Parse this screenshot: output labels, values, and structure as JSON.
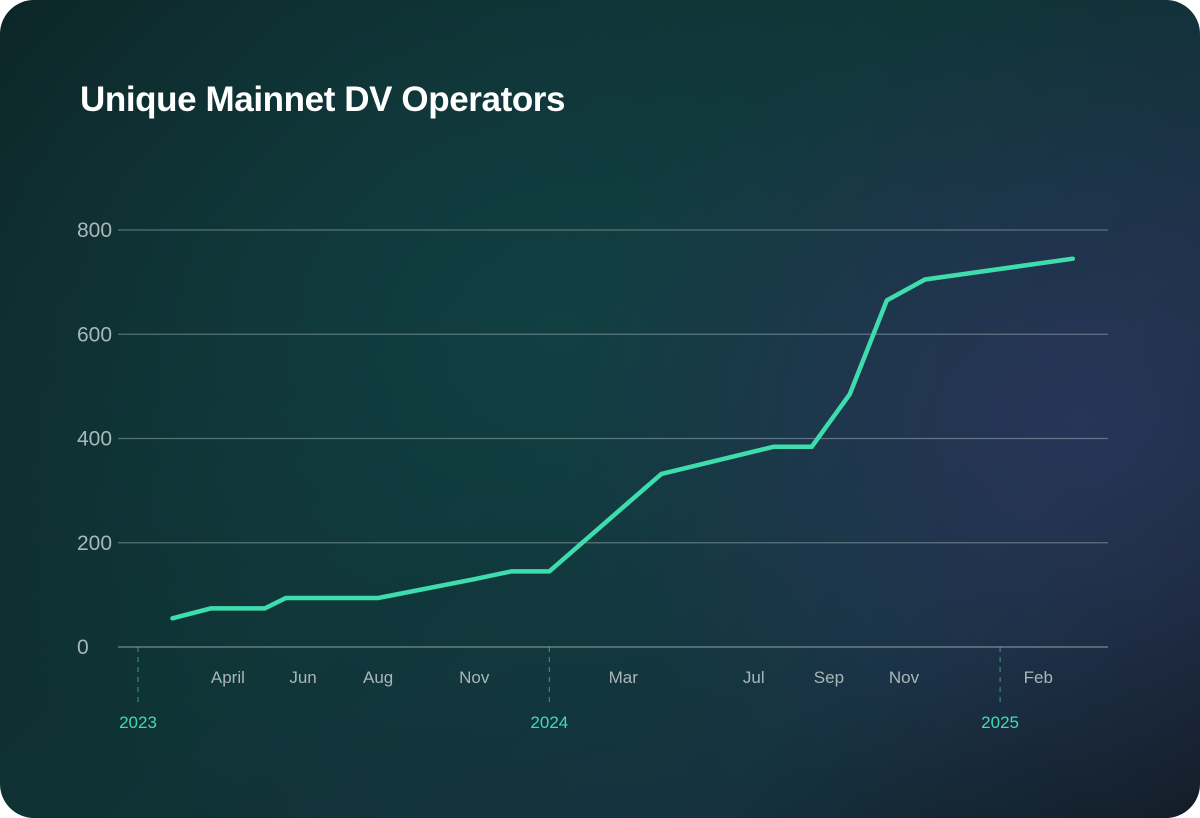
{
  "header": {
    "title": "Unique Mainnet DV Operators"
  },
  "chart_data": {
    "type": "line",
    "title": "Unique Mainnet DV Operators",
    "xlabel": "",
    "ylabel": "",
    "ylim": [
      0,
      800
    ],
    "y_ticks": [
      "800",
      "600",
      "400",
      "200",
      "0"
    ],
    "y_tick_values": [
      800,
      600,
      400,
      200,
      0
    ],
    "x_range": [
      "2023-02-01",
      "2025-03-15"
    ],
    "month_ticks": [
      {
        "label": "April",
        "date": "2023-04-15"
      },
      {
        "label": "Jun",
        "date": "2023-06-15"
      },
      {
        "label": "Aug",
        "date": "2023-08-15"
      },
      {
        "label": "Nov",
        "date": "2023-11-01"
      },
      {
        "label": "Mar",
        "date": "2024-03-01"
      },
      {
        "label": "Jul",
        "date": "2024-06-15"
      },
      {
        "label": "Sep",
        "date": "2024-08-15"
      },
      {
        "label": "Nov",
        "date": "2024-10-15"
      },
      {
        "label": "Feb",
        "date": "2025-02-01"
      }
    ],
    "year_ticks": [
      {
        "label": "2023",
        "date": "2023-02-01"
      },
      {
        "label": "2024",
        "date": "2024-01-01"
      },
      {
        "label": "2025",
        "date": "2025-01-01"
      }
    ],
    "grid": true,
    "legend": "none",
    "line_color": "#3fdcae",
    "series": [
      {
        "x": [
          "2023-03-01",
          "2023-04-01",
          "2023-05-15",
          "2023-06-01",
          "2023-08-15",
          "2023-11-01",
          "2023-12-01",
          "2024-01-01",
          "2024-04-01",
          "2024-07-01",
          "2024-08-01",
          "2024-09-01",
          "2024-10-01",
          "2024-11-01",
          "2025-03-01"
        ],
        "values": [
          55,
          74,
          74,
          94,
          94,
          130,
          145,
          145,
          332,
          384,
          384,
          485,
          665,
          705,
          745
        ]
      }
    ]
  }
}
